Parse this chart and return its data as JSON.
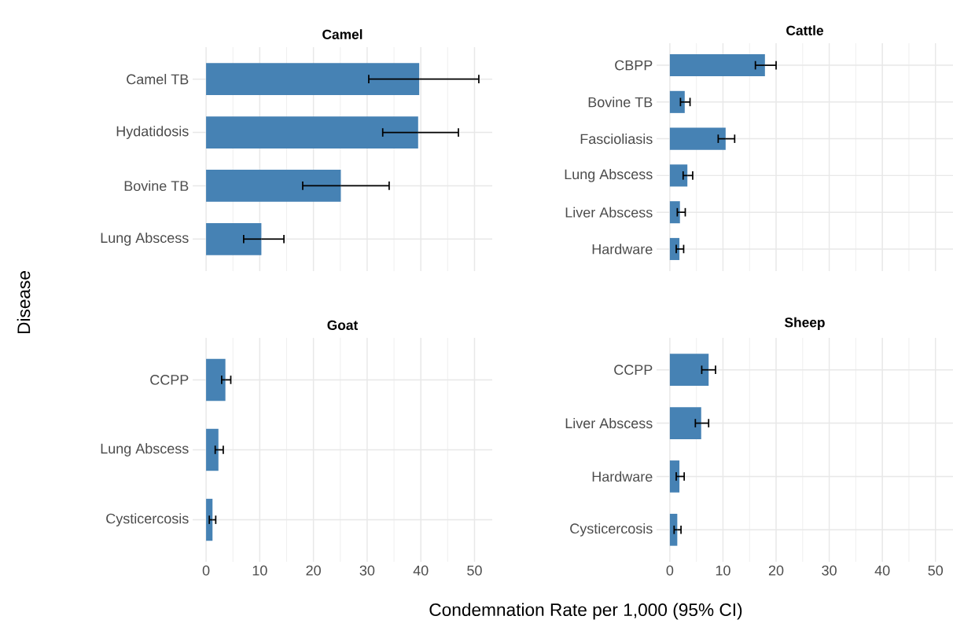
{
  "chart_data": [
    {
      "type": "bar",
      "orientation": "horizontal",
      "title": "Camel",
      "ylabel": "Disease",
      "categories": [
        "Camel TB",
        "Hydatidosis",
        "Bovine TB",
        "Lung Abscess"
      ],
      "values": [
        39.7,
        39.5,
        25.1,
        10.3
      ],
      "errors": [
        [
          30.3,
          50.8
        ],
        [
          32.9,
          47.0
        ],
        [
          18.0,
          34.1
        ],
        [
          7.0,
          14.5
        ]
      ],
      "color": "#4682b4",
      "xlim": [
        -2.5,
        53.3
      ],
      "xticks": [
        0,
        10,
        20,
        30,
        40,
        50
      ],
      "grid": true,
      "tick_labels": "y"
    },
    {
      "type": "bar",
      "orientation": "horizontal",
      "title": "Cattle",
      "categories": [
        "CBPP",
        "Bovine TB",
        "Fascioliasis",
        "Lung Abscess",
        "Liver Abscess",
        "Hardware"
      ],
      "values": [
        17.9,
        2.8,
        10.5,
        3.3,
        1.9,
        1.8
      ],
      "errors": [
        [
          16.1,
          20.0
        ],
        [
          2.0,
          3.8
        ],
        [
          9.1,
          12.2
        ],
        [
          2.5,
          4.3
        ],
        [
          1.4,
          2.9
        ],
        [
          1.2,
          2.6
        ]
      ],
      "color": "#4682b4",
      "xlim": [
        -2.5,
        53.3
      ],
      "xticks": [
        0,
        10,
        20,
        30,
        40,
        50
      ],
      "grid": true,
      "tick_labels": "y"
    },
    {
      "type": "bar",
      "orientation": "horizontal",
      "title": "Goat",
      "xlabel": "Condemnation Rate per 1,000 (95% CI)",
      "categories": [
        "CCPP",
        "Lung Abscess",
        "Cysticercosis"
      ],
      "values": [
        3.6,
        2.3,
        1.2
      ],
      "errors": [
        [
          2.9,
          4.6
        ],
        [
          1.7,
          3.2
        ],
        [
          0.6,
          1.8
        ]
      ],
      "color": "#4682b4",
      "xlim": [
        -2.5,
        53.3
      ],
      "xticks": [
        0,
        10,
        20,
        30,
        40,
        50
      ],
      "grid": true
    },
    {
      "type": "bar",
      "orientation": "horizontal",
      "title": "Sheep",
      "categories": [
        "CCPP",
        "Liver Abscess",
        "Hardware",
        "Cysticercosis"
      ],
      "values": [
        7.3,
        5.9,
        1.8,
        1.4
      ],
      "errors": [
        [
          6.0,
          8.6
        ],
        [
          4.8,
          7.3
        ],
        [
          1.2,
          2.7
        ],
        [
          0.8,
          2.1
        ]
      ],
      "color": "#4682b4",
      "xlim": [
        -2.5,
        53.3
      ],
      "xticks": [
        0,
        10,
        20,
        30,
        40,
        50
      ],
      "grid": true
    }
  ]
}
